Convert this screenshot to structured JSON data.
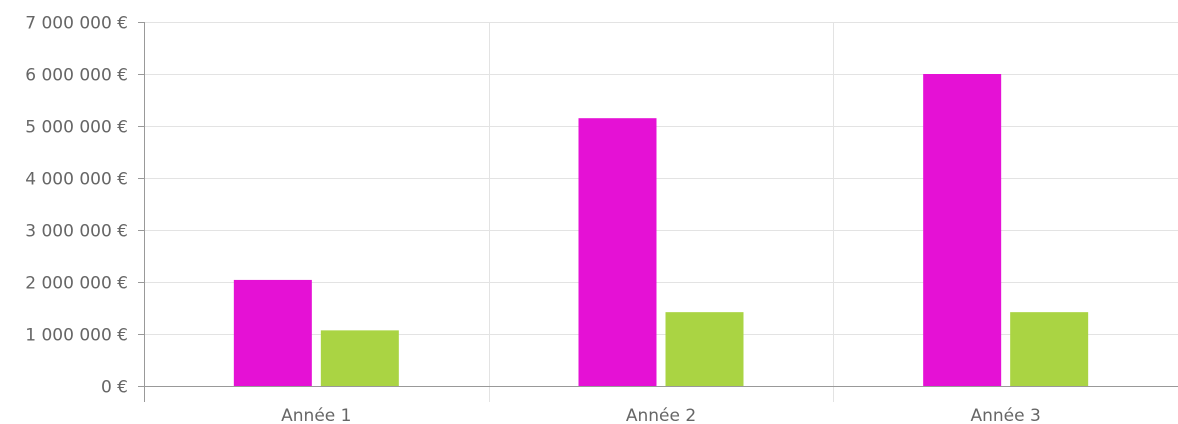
{
  "chart_data": {
    "type": "bar",
    "categories": [
      "Année 1",
      "Année 2",
      "Année 3"
    ],
    "series": [
      {
        "color": "#e511d5",
        "values": [
          2040000,
          5150000,
          6000000
        ]
      },
      {
        "color": "#aad443",
        "values": [
          1070000,
          1420000,
          1420000
        ]
      }
    ],
    "ylim": [
      0,
      7000000
    ],
    "y_ticks": [
      0,
      1000000,
      2000000,
      3000000,
      4000000,
      5000000,
      6000000,
      7000000
    ],
    "y_tick_labels": [
      "0 €",
      "1 000 000 €",
      "2 000 000 €",
      "3 000 000 €",
      "4 000 000 €",
      "5 000 000 €",
      "6 000 000 €",
      "7 000 000 €"
    ],
    "grid": true,
    "title": "",
    "xlabel": "",
    "ylabel": ""
  }
}
